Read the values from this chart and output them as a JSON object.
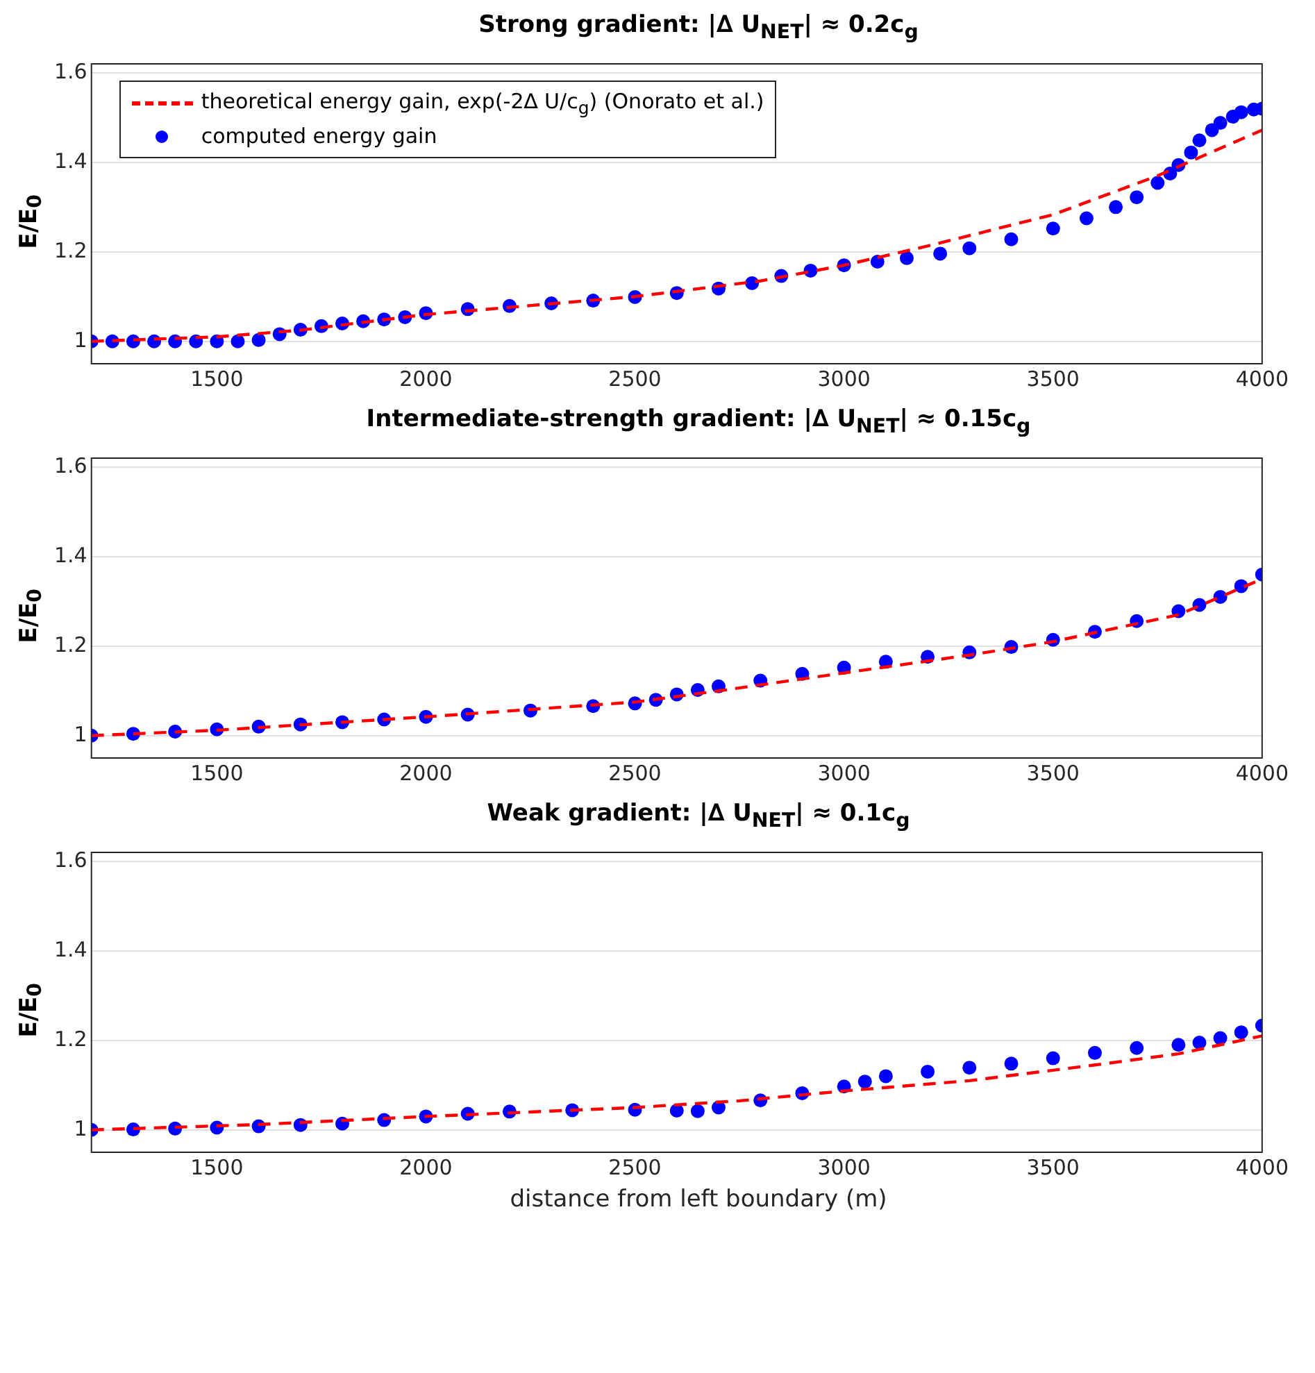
{
  "chart_data": [
    {
      "type": "line",
      "title": "Strong gradient: |∆ U$_{NET}$| ≈ 0.2c$_{g}$",
      "ylabel": "E/E$_{0}$",
      "xlim": [
        1200,
        4000
      ],
      "xticks": [
        1500,
        2000,
        2500,
        3000,
        3500,
        4000
      ],
      "ylim": [
        0.95,
        1.62
      ],
      "yticks": [
        1,
        1.2,
        1.4,
        1.6
      ],
      "grid": "y",
      "legend": "top left",
      "series": [
        {
          "name": "theoretical energy gain, exp(-2∆ U/c$_{g}$) (Onorato et al.)",
          "color": "#ff0000",
          "line_style": "dashed",
          "x": [
            1200,
            1500,
            1700,
            2000,
            2250,
            2500,
            2800,
            3000,
            3200,
            3500,
            3750,
            4000
          ],
          "values": [
            1.0,
            1.01,
            1.025,
            1.06,
            1.08,
            1.1,
            1.135,
            1.17,
            1.213,
            1.283,
            1.37,
            1.472
          ]
        },
        {
          "name": "computed energy gain",
          "type": "scatter",
          "marker": "circle",
          "color": "#0000ff",
          "x": [
            1200,
            1250,
            1300,
            1350,
            1400,
            1450,
            1500,
            1550,
            1600,
            1650,
            1700,
            1750,
            1800,
            1850,
            1900,
            1950,
            2000,
            2100,
            2200,
            2300,
            2400,
            2500,
            2600,
            2700,
            2780,
            2850,
            2920,
            3000,
            3080,
            3150,
            3230,
            3300,
            3400,
            3500,
            3580,
            3650,
            3700,
            3750,
            3780,
            3800,
            3830,
            3850,
            3880,
            3900,
            3930,
            3950,
            3980,
            4000
          ],
          "values": [
            1.0,
            1.0,
            1.0,
            1.0,
            1.0,
            1.0,
            1.0,
            1.0,
            1.003,
            1.016,
            1.026,
            1.034,
            1.04,
            1.045,
            1.049,
            1.054,
            1.063,
            1.072,
            1.079,
            1.085,
            1.091,
            1.099,
            1.108,
            1.118,
            1.13,
            1.146,
            1.158,
            1.17,
            1.178,
            1.186,
            1.196,
            1.208,
            1.228,
            1.252,
            1.275,
            1.3,
            1.322,
            1.354,
            1.375,
            1.394,
            1.422,
            1.449,
            1.472,
            1.488,
            1.502,
            1.512,
            1.518,
            1.52
          ]
        }
      ]
    },
    {
      "type": "line",
      "title": "Intermediate-strength gradient: |∆ U$_{NET}$| ≈ 0.15c$_{g}$",
      "ylabel": "E/E$_{0}$",
      "xlim": [
        1200,
        4000
      ],
      "xticks": [
        1500,
        2000,
        2500,
        3000,
        3500,
        4000
      ],
      "ylim": [
        0.95,
        1.62
      ],
      "yticks": [
        1,
        1.2,
        1.4,
        1.6
      ],
      "grid": "y",
      "series": [
        {
          "color": "#ff0000",
          "line_style": "dashed",
          "x": [
            1200,
            1500,
            2000,
            2500,
            2700,
            3000,
            3300,
            3500,
            3800,
            4000
          ],
          "values": [
            1.0,
            1.012,
            1.042,
            1.075,
            1.1,
            1.14,
            1.18,
            1.21,
            1.27,
            1.35
          ]
        },
        {
          "type": "scatter",
          "marker": "circle",
          "color": "#0000ff",
          "x": [
            1200,
            1300,
            1400,
            1500,
            1600,
            1700,
            1800,
            1900,
            2000,
            2100,
            2250,
            2400,
            2500,
            2550,
            2600,
            2650,
            2700,
            2800,
            2900,
            3000,
            3100,
            3200,
            3300,
            3400,
            3500,
            3600,
            3700,
            3800,
            3850,
            3900,
            3950,
            4000
          ],
          "values": [
            1.0,
            1.004,
            1.009,
            1.014,
            1.02,
            1.025,
            1.03,
            1.036,
            1.042,
            1.047,
            1.056,
            1.066,
            1.072,
            1.08,
            1.092,
            1.102,
            1.11,
            1.123,
            1.138,
            1.152,
            1.165,
            1.176,
            1.186,
            1.198,
            1.214,
            1.232,
            1.256,
            1.278,
            1.292,
            1.31,
            1.334,
            1.36
          ]
        }
      ]
    },
    {
      "type": "line",
      "title": "Weak gradient: |∆ U$_{NET}$| ≈ 0.1c$_{g}$",
      "ylabel": "E/E$_{0}$",
      "xlabel": "distance from left boundary (m)",
      "xlim": [
        1200,
        4000
      ],
      "xticks": [
        1500,
        2000,
        2500,
        3000,
        3500,
        4000
      ],
      "ylim": [
        0.95,
        1.62
      ],
      "yticks": [
        1,
        1.2,
        1.4,
        1.6
      ],
      "grid": "y",
      "series": [
        {
          "color": "#ff0000",
          "line_style": "dashed",
          "x": [
            1200,
            1600,
            2000,
            2250,
            2500,
            2750,
            3000,
            3300,
            3600,
            3800,
            4000
          ],
          "values": [
            1.0,
            1.012,
            1.03,
            1.04,
            1.05,
            1.065,
            1.087,
            1.11,
            1.145,
            1.17,
            1.21
          ]
        },
        {
          "type": "scatter",
          "marker": "circle",
          "color": "#0000ff",
          "x": [
            1200,
            1300,
            1400,
            1500,
            1600,
            1700,
            1800,
            1900,
            2000,
            2100,
            2200,
            2350,
            2500,
            2600,
            2650,
            2700,
            2800,
            2900,
            3000,
            3050,
            3100,
            3200,
            3300,
            3400,
            3500,
            3600,
            3700,
            3800,
            3850,
            3900,
            3950,
            4000
          ],
          "values": [
            1.0,
            1.001,
            1.003,
            1.005,
            1.008,
            1.011,
            1.014,
            1.022,
            1.03,
            1.036,
            1.041,
            1.044,
            1.045,
            1.043,
            1.042,
            1.05,
            1.066,
            1.082,
            1.097,
            1.108,
            1.12,
            1.13,
            1.139,
            1.148,
            1.16,
            1.172,
            1.183,
            1.19,
            1.195,
            1.205,
            1.218,
            1.233
          ]
        }
      ]
    }
  ]
}
